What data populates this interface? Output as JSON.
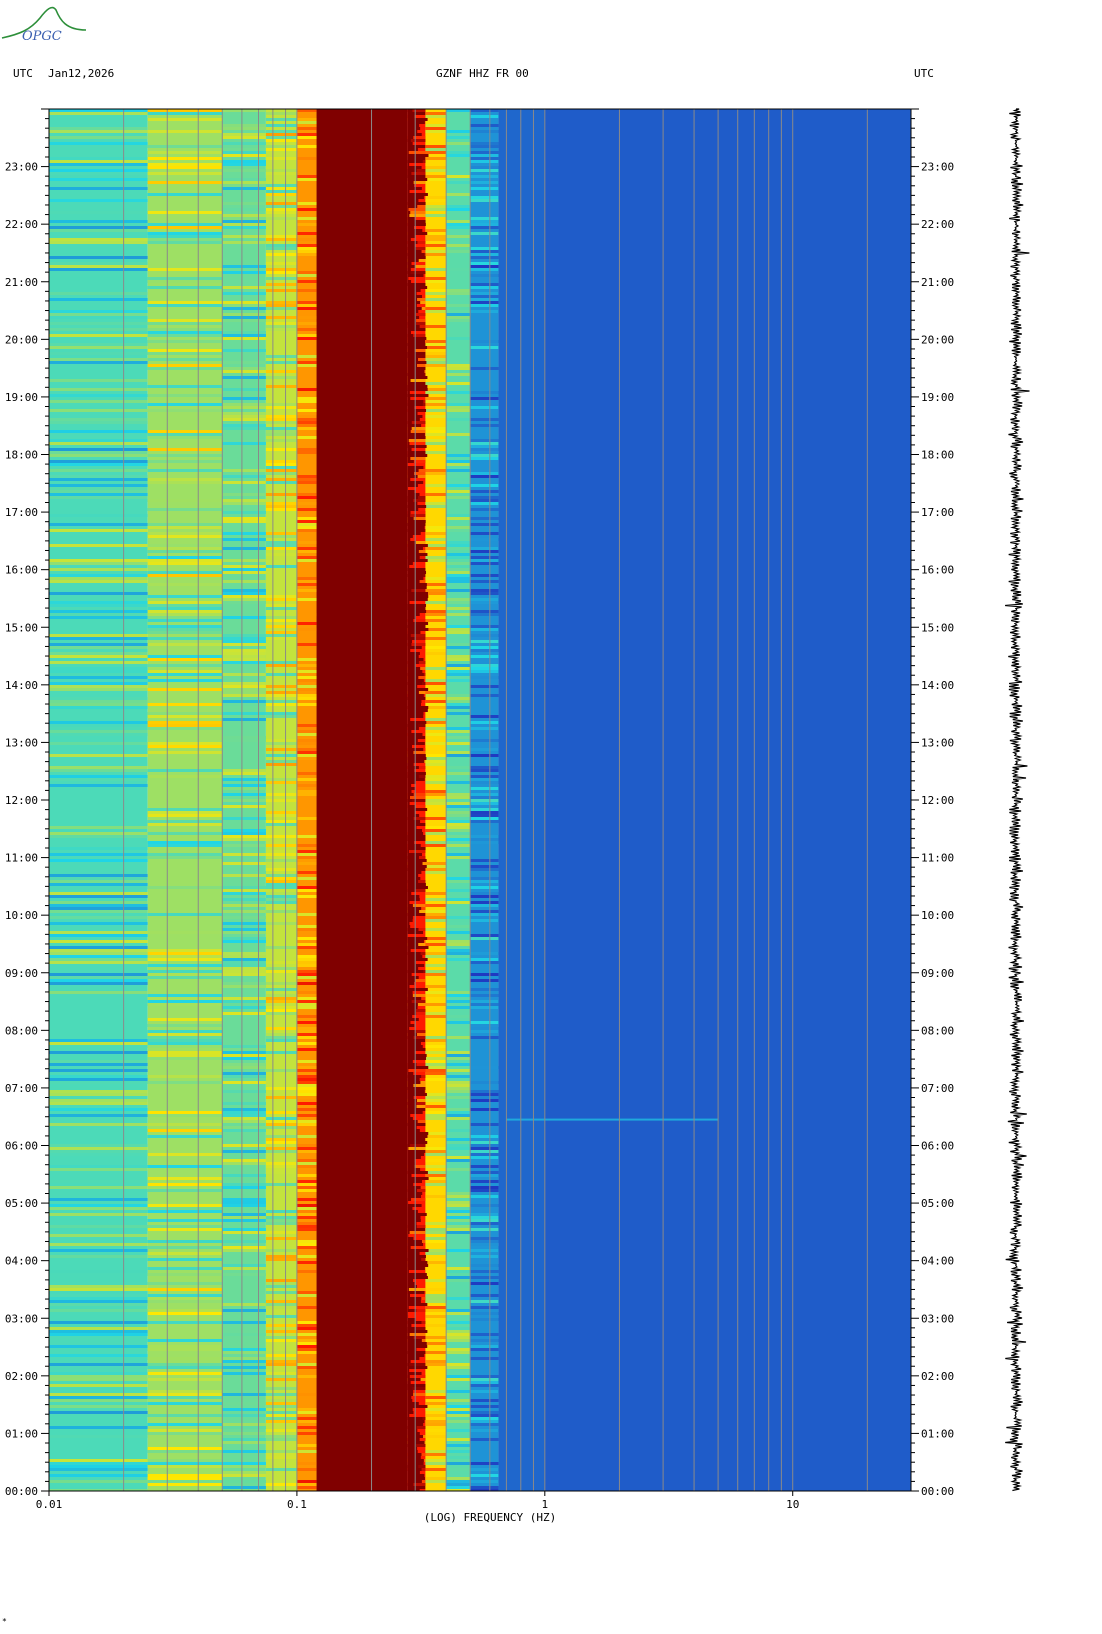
{
  "logo": {
    "text": "OPGC",
    "color": "#2d8f3a"
  },
  "header": {
    "left_tz": "UTC",
    "date": "Jan12,2026",
    "station": "GZNF HHZ FR 00",
    "right_tz": "UTC"
  },
  "footer_mark": "*",
  "chart_data": {
    "type": "heatmap",
    "title": "GZNF HHZ FR 00",
    "date": "Jan12,2026",
    "xlabel": "(LOG) FREQUENCY (HZ)",
    "ylabel": "UTC",
    "x_scale": "log",
    "xlim": [
      0.01,
      30
    ],
    "x_ticks": [
      {
        "value": 0.01,
        "label": "0.01"
      },
      {
        "value": 0.1,
        "label": "0.1"
      },
      {
        "value": 1,
        "label": "1"
      },
      {
        "value": 10,
        "label": "10"
      }
    ],
    "y_ticks": [
      "00:00",
      "01:00",
      "02:00",
      "03:00",
      "04:00",
      "05:00",
      "06:00",
      "07:00",
      "08:00",
      "09:00",
      "10:00",
      "11:00",
      "12:00",
      "13:00",
      "14:00",
      "15:00",
      "16:00",
      "17:00",
      "18:00",
      "19:00",
      "20:00",
      "21:00",
      "22:00",
      "23:00"
    ],
    "ylim_hours": [
      0,
      24
    ],
    "bands": [
      {
        "f_from": 0.01,
        "f_to": 0.025,
        "level": 0.36
      },
      {
        "f_from": 0.025,
        "f_to": 0.05,
        "level": 0.47
      },
      {
        "f_from": 0.05,
        "f_to": 0.075,
        "level": 0.4
      },
      {
        "f_from": 0.075,
        "f_to": 0.1,
        "level": 0.52
      },
      {
        "f_from": 0.1,
        "f_to": 0.12,
        "level": 0.7
      },
      {
        "f_from": 0.12,
        "f_to": 0.28,
        "level": 1.0
      },
      {
        "f_from": 0.28,
        "f_to": 0.33,
        "level": 0.85
      },
      {
        "f_from": 0.33,
        "f_to": 0.4,
        "level": 0.62
      },
      {
        "f_from": 0.4,
        "f_to": 0.5,
        "level": 0.38
      },
      {
        "f_from": 0.5,
        "f_to": 0.65,
        "level": 0.18
      },
      {
        "f_from": 0.65,
        "f_to": 1.0,
        "level": 0.1
      },
      {
        "f_from": 1.0,
        "f_to": 30,
        "level": 0.08
      }
    ],
    "events": [
      {
        "hour": 6.45,
        "f_from": 0.7,
        "f_to": 5,
        "level": 0.22
      }
    ],
    "colors": {
      "blue": "#1f2fbf",
      "cyan": "#1fd6e6",
      "yellow": "#ffe800",
      "red": "#ff1a00",
      "dark_red": "#800000",
      "grid": "#8a8a8a"
    }
  }
}
